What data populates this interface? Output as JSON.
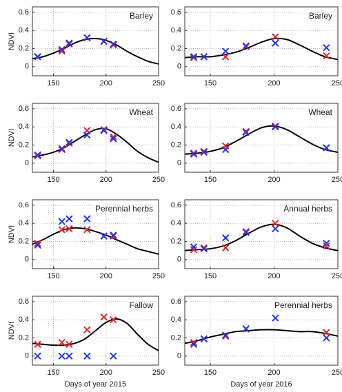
{
  "chart_data": [
    {
      "type": "line",
      "title": "Barley",
      "ylabel": "NDVI",
      "xlim": [
        130,
        250
      ],
      "ylim": [
        -0.1,
        0.66
      ],
      "xticks": [
        150,
        200,
        250
      ],
      "yticks": [
        0,
        0.2,
        0.4,
        0.6
      ],
      "grid": true,
      "series": [
        {
          "style": "line",
          "color": "#000000",
          "x": [
            130,
            140,
            150,
            160,
            170,
            180,
            190,
            200,
            210,
            220,
            230,
            240,
            250
          ],
          "values": [
            0.09,
            0.11,
            0.15,
            0.2,
            0.26,
            0.3,
            0.31,
            0.29,
            0.24,
            0.17,
            0.11,
            0.06,
            0.03
          ]
        },
        {
          "style": "cross",
          "color": "#ee2222",
          "x": [
            135,
            158,
            165,
            182,
            198,
            207
          ],
          "values": [
            0.11,
            0.17,
            0.25,
            0.32,
            0.28,
            0.24
          ]
        },
        {
          "style": "cross",
          "color": "#2233ee",
          "x": [
            135,
            158,
            165,
            182,
            198,
            207
          ],
          "values": [
            0.11,
            0.19,
            0.26,
            0.32,
            0.28,
            0.25
          ]
        }
      ]
    },
    {
      "type": "line",
      "title": "Barley",
      "xlim": [
        130,
        250
      ],
      "ylim": [
        -0.1,
        0.66
      ],
      "xticks": [
        150,
        200,
        250
      ],
      "yticks": [
        0,
        0.2,
        0.4,
        0.6
      ],
      "grid": true,
      "series": [
        {
          "style": "line",
          "color": "#000000",
          "x": [
            130,
            140,
            150,
            160,
            170,
            180,
            190,
            200,
            210,
            220,
            230,
            240,
            250
          ],
          "values": [
            0.1,
            0.11,
            0.11,
            0.13,
            0.16,
            0.21,
            0.27,
            0.31,
            0.3,
            0.24,
            0.17,
            0.11,
            0.08
          ]
        },
        {
          "style": "cross",
          "color": "#ee2222",
          "x": [
            137,
            145,
            162,
            178,
            201,
            241
          ],
          "values": [
            0.1,
            0.11,
            0.11,
            0.22,
            0.33,
            0.12
          ]
        },
        {
          "style": "cross",
          "color": "#2233ee",
          "x": [
            137,
            145,
            162,
            178,
            201,
            241
          ],
          "values": [
            0.11,
            0.11,
            0.17,
            0.23,
            0.26,
            0.21
          ]
        }
      ]
    },
    {
      "type": "line",
      "title": "Wheat",
      "ylabel": "NDVI",
      "xlim": [
        130,
        250
      ],
      "ylim": [
        -0.1,
        0.66
      ],
      "xticks": [
        150,
        200,
        250
      ],
      "yticks": [
        0,
        0.2,
        0.4,
        0.6
      ],
      "grid": true,
      "series": [
        {
          "style": "line",
          "color": "#000000",
          "x": [
            130,
            140,
            150,
            160,
            170,
            180,
            190,
            200,
            210,
            220,
            230,
            240,
            250
          ],
          "values": [
            0.07,
            0.09,
            0.12,
            0.17,
            0.24,
            0.31,
            0.37,
            0.38,
            0.32,
            0.23,
            0.13,
            0.06,
            0.01
          ]
        },
        {
          "style": "cross",
          "color": "#ee2222",
          "x": [
            135,
            158,
            165,
            182,
            198,
            207
          ],
          "values": [
            0.08,
            0.15,
            0.22,
            0.36,
            0.37,
            0.29
          ]
        },
        {
          "style": "cross",
          "color": "#2233ee",
          "x": [
            135,
            158,
            165,
            182,
            198,
            207
          ],
          "values": [
            0.09,
            0.16,
            0.23,
            0.31,
            0.36,
            0.27
          ]
        }
      ]
    },
    {
      "type": "line",
      "title": "Wheat",
      "xlim": [
        130,
        250
      ],
      "ylim": [
        -0.1,
        0.66
      ],
      "xticks": [
        150,
        200,
        250
      ],
      "yticks": [
        0,
        0.2,
        0.4,
        0.6
      ],
      "grid": true,
      "series": [
        {
          "style": "line",
          "color": "#000000",
          "x": [
            130,
            140,
            150,
            160,
            170,
            180,
            190,
            200,
            210,
            220,
            230,
            240,
            250
          ],
          "values": [
            0.1,
            0.11,
            0.13,
            0.17,
            0.24,
            0.32,
            0.39,
            0.41,
            0.37,
            0.29,
            0.21,
            0.15,
            0.12
          ]
        },
        {
          "style": "cross",
          "color": "#ee2222",
          "x": [
            137,
            145,
            162,
            178,
            201,
            241
          ],
          "values": [
            0.11,
            0.13,
            0.19,
            0.35,
            0.41,
            0.17
          ]
        },
        {
          "style": "cross",
          "color": "#2233ee",
          "x": [
            137,
            145,
            162,
            178,
            201,
            241
          ],
          "values": [
            0.1,
            0.12,
            0.15,
            0.34,
            0.4,
            0.17
          ]
        }
      ]
    },
    {
      "type": "line",
      "title": "Perennial herbs",
      "ylabel": "NDVI",
      "xlim": [
        130,
        250
      ],
      "ylim": [
        -0.1,
        0.66
      ],
      "xticks": [
        150,
        200,
        250
      ],
      "yticks": [
        0,
        0.2,
        0.4,
        0.6
      ],
      "grid": true,
      "series": [
        {
          "style": "line",
          "color": "#000000",
          "x": [
            130,
            140,
            150,
            160,
            170,
            180,
            190,
            200,
            210,
            220,
            230,
            240,
            250
          ],
          "values": [
            0.17,
            0.22,
            0.28,
            0.33,
            0.35,
            0.34,
            0.31,
            0.27,
            0.22,
            0.17,
            0.12,
            0.09,
            0.06
          ]
        },
        {
          "style": "cross",
          "color": "#ee2222",
          "x": [
            135,
            158,
            165,
            182,
            198,
            207
          ],
          "values": [
            0.18,
            0.33,
            0.34,
            0.33,
            0.26,
            0.26
          ]
        },
        {
          "style": "cross",
          "color": "#2233ee",
          "x": [
            135,
            158,
            165,
            182,
            198,
            207
          ],
          "values": [
            0.16,
            0.42,
            0.45,
            0.45,
            0.26,
            0.27
          ]
        }
      ]
    },
    {
      "type": "line",
      "title": "Annual herbs",
      "xlim": [
        130,
        250
      ],
      "ylim": [
        -0.1,
        0.66
      ],
      "xticks": [
        150,
        200,
        250
      ],
      "yticks": [
        0,
        0.2,
        0.4,
        0.6
      ],
      "grid": true,
      "series": [
        {
          "style": "line",
          "color": "#000000",
          "x": [
            130,
            140,
            150,
            160,
            170,
            180,
            190,
            200,
            210,
            220,
            230,
            240,
            250
          ],
          "values": [
            0.1,
            0.11,
            0.12,
            0.15,
            0.21,
            0.29,
            0.36,
            0.39,
            0.35,
            0.26,
            0.18,
            0.13,
            0.1
          ]
        },
        {
          "style": "cross",
          "color": "#ee2222",
          "x": [
            137,
            145,
            162,
            178,
            201,
            241
          ],
          "values": [
            0.11,
            0.13,
            0.13,
            0.31,
            0.4,
            0.15
          ]
        },
        {
          "style": "cross",
          "color": "#2233ee",
          "x": [
            137,
            145,
            162,
            178,
            201,
            241
          ],
          "values": [
            0.14,
            0.12,
            0.24,
            0.3,
            0.34,
            0.18
          ]
        }
      ]
    },
    {
      "type": "line",
      "title": "Fallow",
      "ylabel": "NDVI",
      "xlabel": "Days of year 2015",
      "xlim": [
        130,
        250
      ],
      "ylim": [
        -0.1,
        0.66
      ],
      "xticks": [
        150,
        200,
        250
      ],
      "yticks": [
        0,
        0.2,
        0.4,
        0.6
      ],
      "grid": true,
      "series": [
        {
          "style": "line",
          "color": "#000000",
          "x": [
            130,
            140,
            150,
            160,
            170,
            180,
            190,
            200,
            210,
            220,
            230,
            240,
            250
          ],
          "values": [
            0.14,
            0.13,
            0.12,
            0.12,
            0.14,
            0.19,
            0.28,
            0.37,
            0.41,
            0.36,
            0.24,
            0.13,
            0.06
          ]
        },
        {
          "style": "cross",
          "color": "#ee2222",
          "x": [
            135,
            158,
            165,
            182,
            198,
            207
          ],
          "values": [
            0.13,
            0.15,
            0.13,
            0.29,
            0.43,
            0.4
          ]
        },
        {
          "style": "cross",
          "color": "#2233ee",
          "x": [
            135,
            158,
            165,
            182,
            207
          ],
          "values": [
            0,
            0,
            0,
            0,
            0
          ]
        }
      ]
    },
    {
      "type": "line",
      "title": "Perennial herbs",
      "xlabel": "Days of year 2016",
      "xlim": [
        130,
        250
      ],
      "ylim": [
        -0.1,
        0.66
      ],
      "xticks": [
        150,
        200,
        250
      ],
      "yticks": [
        0,
        0.2,
        0.4,
        0.6
      ],
      "grid": true,
      "series": [
        {
          "style": "line",
          "color": "#000000",
          "x": [
            130,
            140,
            150,
            160,
            170,
            180,
            190,
            200,
            210,
            220,
            230,
            240,
            250
          ],
          "values": [
            0.14,
            0.17,
            0.21,
            0.24,
            0.27,
            0.28,
            0.29,
            0.29,
            0.28,
            0.27,
            0.27,
            0.25,
            0.22
          ]
        },
        {
          "style": "cross",
          "color": "#ee2222",
          "x": [
            137,
            145,
            162,
            178,
            241
          ],
          "values": [
            0.15,
            0.19,
            0.22,
            0.3,
            0.26
          ]
        },
        {
          "style": "cross",
          "color": "#2233ee",
          "x": [
            137,
            145,
            162,
            178,
            201,
            241
          ],
          "values": [
            0.13,
            0.19,
            0.23,
            0.3,
            0.42,
            0.2
          ]
        }
      ]
    }
  ]
}
